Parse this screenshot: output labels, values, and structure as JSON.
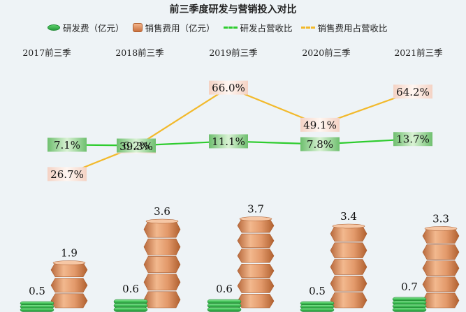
{
  "title": "前三季度研发与营销投入对比",
  "legend": {
    "rd": "研发费（亿元）",
    "sales": "销售费用（亿元）",
    "rd_ratio": "研发占营收比",
    "sales_ratio": "销售费用占营收比"
  },
  "colors": {
    "rd_bar": "#3fbf55",
    "sales_bar": "#d9885a",
    "rd_ratio_line": "#2ecc2e",
    "sales_ratio_line": "#f2b92b",
    "background": "#eef3f6"
  },
  "chart_data": {
    "type": "bar",
    "title": "前三季度研发与营销投入对比",
    "categories": [
      "2017前三季",
      "2018前三季",
      "2019前三季",
      "2020前三季",
      "2021前三季"
    ],
    "series": [
      {
        "name": "研发费（亿元）",
        "type": "bar",
        "values": [
          0.5,
          0.6,
          0.6,
          0.5,
          0.7
        ],
        "labels": [
          "0.5",
          "0.6",
          "0.6",
          "0.5",
          "0.7"
        ]
      },
      {
        "name": "销售费用（亿元）",
        "type": "bar",
        "values": [
          1.9,
          3.6,
          3.7,
          3.4,
          3.3
        ],
        "labels": [
          "1.9",
          "3.6",
          "3.7",
          "3.4",
          "3.3"
        ]
      },
      {
        "name": "研发占营收比",
        "type": "line",
        "values": [
          7.1,
          6.2,
          11.1,
          7.8,
          13.7
        ],
        "labels": [
          "7.1%",
          "6.2%",
          "11.1%",
          "7.8%",
          "13.7%"
        ]
      },
      {
        "name": "销售费用占营收比",
        "type": "line",
        "values": [
          26.7,
          39.3,
          66.0,
          49.1,
          64.2
        ],
        "labels": [
          "26.7%",
          "39.3%",
          "66.0%",
          "49.1%",
          "64.2%"
        ]
      }
    ],
    "grid": false,
    "legend_position": "top"
  }
}
